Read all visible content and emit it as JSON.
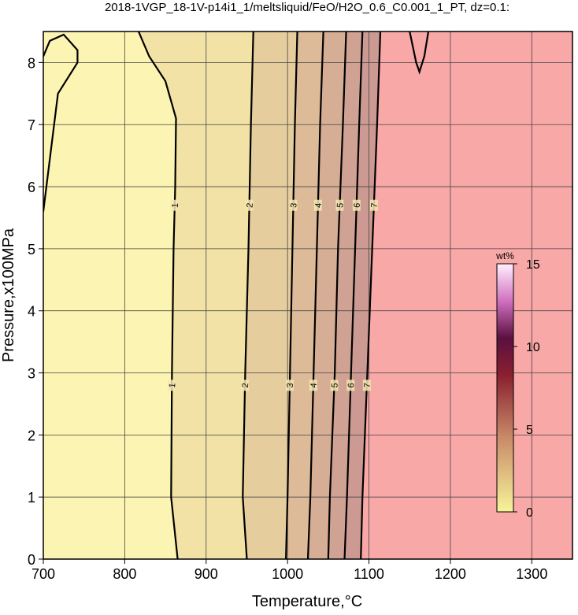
{
  "chart_data": {
    "type": "contour",
    "title": "2018-1VGP_18-1V-p14i1_1/meltsliquid/FeO/H2O_0.6_C0.001_1_PT, dz=0.1:",
    "xlabel": "Temperature,°C",
    "ylabel": "Pressure,x100MPa",
    "xlim": [
      700,
      1350
    ],
    "ylim": [
      0,
      8.5
    ],
    "xticks": [
      700,
      800,
      900,
      1000,
      1100,
      1200,
      1300
    ],
    "yticks": [
      0,
      1,
      2,
      3,
      4,
      5,
      6,
      7,
      8
    ],
    "grid": true,
    "contours": [
      {
        "level": 1,
        "x": [
          865,
          857,
          858,
          860,
          862,
          863,
          850,
          830,
          817
        ],
        "y": [
          0,
          1,
          3,
          5,
          6,
          7.1,
          7.7,
          8.1,
          8.5
        ]
      },
      {
        "level": 2,
        "x": [
          950,
          945,
          948,
          952,
          955,
          958
        ],
        "y": [
          0,
          1,
          3,
          5,
          7,
          8.5
        ]
      },
      {
        "level": 3,
        "x": [
          998,
          1000,
          1003,
          1006,
          1009,
          1012
        ],
        "y": [
          0,
          1,
          3,
          5,
          7,
          8.5
        ]
      },
      {
        "level": 4,
        "x": [
          1025,
          1028,
          1032,
          1036,
          1040,
          1044
        ],
        "y": [
          0,
          1,
          3,
          5,
          7,
          8.5
        ]
      },
      {
        "level": 5,
        "x": [
          1050,
          1052,
          1058,
          1062,
          1068,
          1072
        ],
        "y": [
          0,
          1,
          3,
          5,
          7,
          8.5
        ]
      },
      {
        "level": 6,
        "x": [
          1070,
          1073,
          1078,
          1083,
          1088,
          1092
        ],
        "y": [
          0,
          1,
          3,
          5,
          7,
          8.5
        ]
      },
      {
        "level": 7,
        "x": [
          1090,
          1092,
          1098,
          1104,
          1110,
          1114
        ],
        "y": [
          0,
          1,
          3,
          5,
          7,
          8.5
        ]
      }
    ],
    "extra_contours": [
      {
        "level": 1,
        "x": [
          700,
          718,
          742,
          742,
          725,
          708,
          700
        ],
        "y": [
          5.6,
          7.5,
          8.0,
          8.2,
          8.45,
          8.35,
          8.1
        ]
      },
      {
        "level": 1,
        "x": [
          1150,
          1158,
          1162,
          1168,
          1173
        ],
        "y": [
          8.5,
          8.0,
          7.85,
          8.1,
          8.5
        ]
      }
    ],
    "colorbar": {
      "label": "wt%",
      "clim": [
        0,
        15
      ],
      "ticks": [
        0,
        5,
        10,
        15
      ]
    }
  }
}
